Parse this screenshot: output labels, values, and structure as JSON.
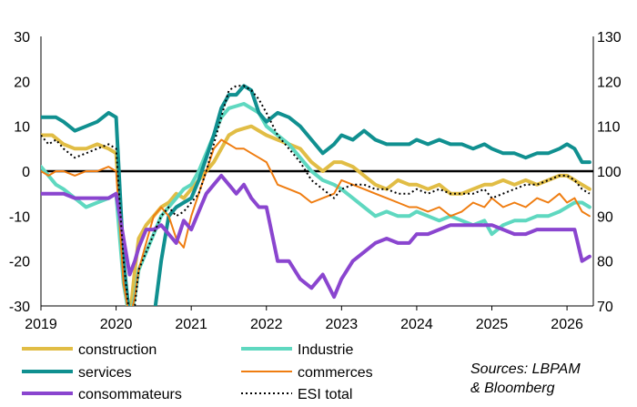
{
  "chart_data": {
    "type": "line",
    "x_ticks": [
      "2019",
      "2020",
      "2021",
      "2022",
      "2023",
      "2024",
      "2025",
      "2026"
    ],
    "y_left_ticks": [
      "30",
      "20",
      "10",
      "0",
      "-10",
      "-20",
      "-30"
    ],
    "y_right_ticks": [
      "130",
      "120",
      "110",
      "100",
      "90",
      "80",
      "70"
    ],
    "ylim_left": [
      -30,
      30
    ],
    "ylim_right": [
      70,
      130
    ],
    "xlim": [
      2019.0,
      2026.35
    ],
    "grid": false,
    "zero_line": true,
    "legend_position": "bottom",
    "source_lines": [
      "Sources: LBPAM",
      "& Bloomberg"
    ],
    "series": [
      {
        "name": "construction",
        "color": "#e1bd45",
        "width": 4,
        "axis": "left",
        "x": [
          2019.0,
          2019.15,
          2019.3,
          2019.45,
          2019.6,
          2019.75,
          2019.9,
          2020.0,
          2020.1,
          2020.18,
          2020.25,
          2020.3,
          2020.4,
          2020.5,
          2020.6,
          2020.7,
          2020.8,
          2020.9,
          2021.0,
          2021.1,
          2021.2,
          2021.3,
          2021.4,
          2021.5,
          2021.6,
          2021.7,
          2021.8,
          2021.9,
          2022.0,
          2022.15,
          2022.3,
          2022.45,
          2022.6,
          2022.75,
          2022.9,
          2023.0,
          2023.15,
          2023.3,
          2023.45,
          2023.6,
          2023.75,
          2023.9,
          2024.0,
          2024.15,
          2024.3,
          2024.45,
          2024.6,
          2024.75,
          2024.9,
          2025.0,
          2025.15,
          2025.3,
          2025.45,
          2025.6,
          2025.75,
          2025.9,
          2026.0,
          2026.1,
          2026.2,
          2026.3
        ],
        "y": [
          8,
          8,
          6,
          5,
          5,
          6,
          5,
          4,
          -20,
          -33,
          -22,
          -15,
          -12,
          -10,
          -8,
          -7,
          -5,
          -6,
          -4,
          -2,
          0,
          2,
          5,
          8,
          9,
          9.5,
          10,
          9,
          8,
          7,
          6,
          5,
          2,
          0,
          2,
          2,
          1,
          -1,
          -3,
          -4,
          -2,
          -3,
          -3,
          -4,
          -3,
          -5,
          -5,
          -4,
          -3,
          -3,
          -2,
          -3,
          -2,
          -3,
          -2,
          -1,
          -1,
          -2,
          -3,
          -4
        ]
      },
      {
        "name": "Industrie",
        "color": "#5fd8c0",
        "width": 4,
        "axis": "left",
        "x": [
          2019.0,
          2019.1,
          2019.2,
          2019.3,
          2019.45,
          2019.6,
          2019.75,
          2019.9,
          2020.0,
          2020.1,
          2020.18,
          2020.25,
          2020.3,
          2020.4,
          2020.5,
          2020.6,
          2020.7,
          2020.8,
          2020.9,
          2021.0,
          2021.1,
          2021.2,
          2021.3,
          2021.4,
          2021.5,
          2021.6,
          2021.7,
          2021.8,
          2021.9,
          2022.0,
          2022.15,
          2022.3,
          2022.45,
          2022.6,
          2022.75,
          2022.9,
          2023.0,
          2023.15,
          2023.3,
          2023.45,
          2023.6,
          2023.75,
          2023.9,
          2024.0,
          2024.15,
          2024.3,
          2024.45,
          2024.6,
          2024.75,
          2024.9,
          2025.0,
          2025.15,
          2025.3,
          2025.45,
          2025.6,
          2025.75,
          2025.9,
          2026.0,
          2026.1,
          2026.2,
          2026.3
        ],
        "y": [
          1,
          -1,
          -3,
          -4,
          -6,
          -8,
          -7,
          -6,
          -5,
          -25,
          -33,
          -28,
          -22,
          -18,
          -14,
          -10,
          -8,
          -6,
          -4,
          -3,
          0,
          4,
          8,
          12,
          14,
          14.5,
          15,
          14,
          13,
          10,
          8,
          6,
          3,
          0,
          -2,
          -3,
          -4,
          -6,
          -8,
          -10,
          -9,
          -10,
          -10,
          -9,
          -10,
          -11,
          -10,
          -11,
          -12,
          -11,
          -14,
          -12,
          -11,
          -11,
          -10,
          -10,
          -9,
          -8,
          -7,
          -7,
          -8
        ]
      },
      {
        "name": "services",
        "color": "#109090",
        "width": 4,
        "axis": "left",
        "x": [
          2019.0,
          2019.1,
          2019.2,
          2019.3,
          2019.45,
          2019.6,
          2019.75,
          2019.9,
          2020.0,
          2020.1,
          2020.18,
          2020.25,
          2020.3,
          2020.4,
          2020.5,
          2020.6,
          2020.7,
          2020.8,
          2020.9,
          2021.0,
          2021.1,
          2021.2,
          2021.3,
          2021.4,
          2021.5,
          2021.6,
          2021.7,
          2021.8,
          2021.9,
          2022.0,
          2022.15,
          2022.3,
          2022.45,
          2022.6,
          2022.75,
          2022.9,
          2023.0,
          2023.15,
          2023.3,
          2023.45,
          2023.6,
          2023.75,
          2023.9,
          2024.0,
          2024.15,
          2024.3,
          2024.45,
          2024.6,
          2024.75,
          2024.9,
          2025.0,
          2025.15,
          2025.3,
          2025.45,
          2025.6,
          2025.75,
          2025.9,
          2026.0,
          2026.1,
          2026.2,
          2026.3
        ],
        "y": [
          12,
          12,
          12,
          11,
          9,
          10,
          11,
          13,
          12,
          -20,
          -33,
          -33,
          -33,
          -33,
          -33,
          -20,
          -10,
          -8,
          -7,
          -6,
          -2,
          3,
          8,
          14,
          17,
          17,
          19,
          18,
          13,
          11,
          13,
          12,
          10,
          7,
          4,
          6,
          8,
          7,
          9,
          7,
          6,
          6,
          6,
          7,
          6,
          7,
          6,
          6,
          5,
          6,
          5,
          4,
          4,
          3,
          4,
          4,
          5,
          6,
          5,
          2,
          2
        ]
      },
      {
        "name": "commerces",
        "color": "#ef7d11",
        "width": 2,
        "axis": "left",
        "x": [
          2019.0,
          2019.1,
          2019.2,
          2019.3,
          2019.45,
          2019.6,
          2019.75,
          2019.9,
          2020.0,
          2020.1,
          2020.18,
          2020.25,
          2020.3,
          2020.4,
          2020.5,
          2020.6,
          2020.7,
          2020.8,
          2020.9,
          2021.0,
          2021.1,
          2021.2,
          2021.3,
          2021.4,
          2021.5,
          2021.6,
          2021.7,
          2021.8,
          2021.9,
          2022.0,
          2022.15,
          2022.3,
          2022.45,
          2022.6,
          2022.75,
          2022.9,
          2023.0,
          2023.15,
          2023.3,
          2023.45,
          2023.6,
          2023.75,
          2023.9,
          2024.0,
          2024.15,
          2024.3,
          2024.45,
          2024.6,
          2024.75,
          2024.9,
          2025.0,
          2025.15,
          2025.3,
          2025.45,
          2025.6,
          2025.75,
          2025.9,
          2026.0,
          2026.1,
          2026.2,
          2026.3
        ],
        "y": [
          0,
          -1,
          0,
          0,
          -1,
          0,
          0,
          1,
          0,
          -25,
          -33,
          -28,
          -22,
          -16,
          -10,
          -8,
          -10,
          -15,
          -17,
          -10,
          -5,
          0,
          5,
          7,
          6,
          5,
          5,
          4,
          3,
          2,
          -3,
          -4,
          -5,
          -7,
          -6,
          -5,
          -2,
          -3,
          -4,
          -5,
          -6,
          -7,
          -8,
          -8,
          -9,
          -8,
          -10,
          -9,
          -7,
          -8,
          -6,
          -8,
          -7,
          -8,
          -6,
          -7,
          -5,
          -7,
          -6,
          -9,
          -10
        ]
      },
      {
        "name": "consommateurs",
        "color": "#8a45cf",
        "width": 4,
        "axis": "left",
        "x": [
          2019.0,
          2019.1,
          2019.2,
          2019.3,
          2019.45,
          2019.6,
          2019.75,
          2019.9,
          2020.0,
          2020.1,
          2020.18,
          2020.25,
          2020.3,
          2020.4,
          2020.5,
          2020.6,
          2020.7,
          2020.8,
          2020.9,
          2021.0,
          2021.1,
          2021.2,
          2021.3,
          2021.4,
          2021.5,
          2021.6,
          2021.7,
          2021.8,
          2021.9,
          2022.0,
          2022.15,
          2022.3,
          2022.45,
          2022.6,
          2022.75,
          2022.9,
          2023.0,
          2023.15,
          2023.3,
          2023.45,
          2023.6,
          2023.75,
          2023.9,
          2024.0,
          2024.15,
          2024.3,
          2024.45,
          2024.6,
          2024.75,
          2024.9,
          2025.0,
          2025.15,
          2025.3,
          2025.45,
          2025.6,
          2025.75,
          2025.9,
          2026.0,
          2026.1,
          2026.2,
          2026.3
        ],
        "y": [
          -5,
          -5,
          -5,
          -5,
          -6,
          -6,
          -6,
          -6,
          -5,
          -15,
          -23,
          -20,
          -17,
          -13,
          -13,
          -12,
          -14,
          -16,
          -11,
          -13,
          -9,
          -5,
          -3,
          -1,
          -3,
          -5,
          -3,
          -6,
          -8,
          -8,
          -20,
          -20,
          -24,
          -26,
          -23,
          -28,
          -24,
          -20,
          -18,
          -16,
          -15,
          -16,
          -16,
          -14,
          -14,
          -13,
          -12,
          -12,
          -12,
          -12,
          -12,
          -13,
          -14,
          -14,
          -13,
          -13,
          -13,
          -13,
          -13,
          -20,
          -19
        ]
      },
      {
        "name": "ESI total",
        "color": "#000000",
        "width": 2,
        "dash": "2,3",
        "axis": "right",
        "x": [
          2019.0,
          2019.1,
          2019.2,
          2019.3,
          2019.45,
          2019.6,
          2019.75,
          2019.9,
          2020.0,
          2020.1,
          2020.18,
          2020.25,
          2020.3,
          2020.4,
          2020.5,
          2020.6,
          2020.7,
          2020.8,
          2020.9,
          2021.0,
          2021.1,
          2021.2,
          2021.3,
          2021.4,
          2021.5,
          2021.6,
          2021.7,
          2021.8,
          2021.9,
          2022.0,
          2022.15,
          2022.3,
          2022.45,
          2022.6,
          2022.75,
          2022.9,
          2023.0,
          2023.15,
          2023.3,
          2023.45,
          2023.6,
          2023.75,
          2023.9,
          2024.0,
          2024.15,
          2024.3,
          2024.45,
          2024.6,
          2024.75,
          2024.9,
          2025.0,
          2025.15,
          2025.3,
          2025.45,
          2025.6,
          2025.75,
          2025.9,
          2026.0,
          2026.1,
          2026.2,
          2026.3
        ],
        "y": [
          108,
          106,
          107,
          105,
          103,
          104,
          105,
          106,
          105,
          80,
          67,
          70,
          78,
          82,
          86,
          90,
          92,
          90,
          91,
          93,
          95,
          100,
          106,
          112,
          118,
          119,
          119,
          118,
          116,
          113,
          108,
          105,
          102,
          98,
          96,
          94,
          96,
          97,
          97,
          96,
          96,
          95,
          95,
          96,
          95,
          96,
          95,
          95,
          95,
          96,
          94,
          95,
          96,
          97,
          97,
          98,
          99,
          99,
          98,
          96,
          95
        ]
      }
    ]
  }
}
